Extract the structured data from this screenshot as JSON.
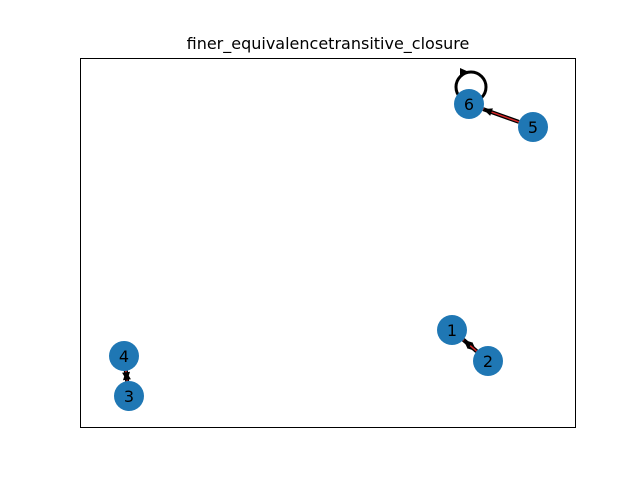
{
  "figure": {
    "title": "finer_equivalencetransitive_closure"
  },
  "graph": {
    "node_color": "#1f77b4",
    "edge_color": "#000000",
    "arrow_color": "#d62728",
    "nodes": [
      {
        "id": "1",
        "label": "1"
      },
      {
        "id": "2",
        "label": "2"
      },
      {
        "id": "3",
        "label": "3"
      },
      {
        "id": "4",
        "label": "4"
      },
      {
        "id": "5",
        "label": "5"
      },
      {
        "id": "6",
        "label": "6"
      }
    ],
    "edges": [
      {
        "source": "1",
        "target": "2"
      },
      {
        "source": "2",
        "target": "1"
      },
      {
        "source": "3",
        "target": "4"
      },
      {
        "source": "4",
        "target": "3"
      },
      {
        "source": "5",
        "target": "6"
      },
      {
        "source": "6",
        "target": "6"
      }
    ]
  }
}
